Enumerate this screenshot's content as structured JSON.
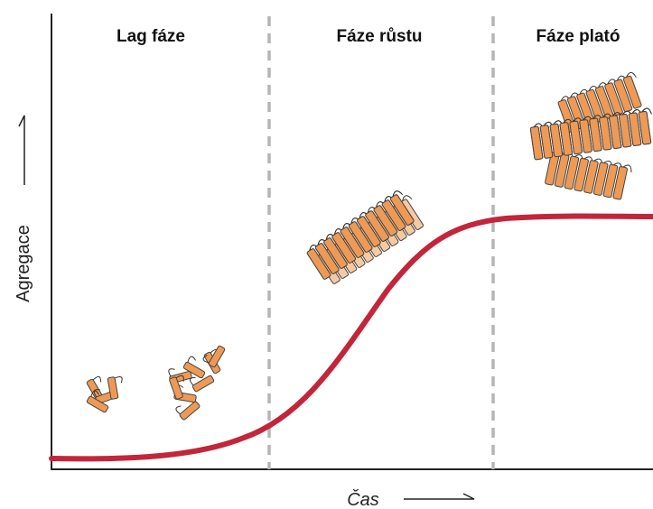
{
  "diagram": {
    "phases": [
      {
        "label": "Lag fáze"
      },
      {
        "label": "Fáze růstu"
      },
      {
        "label": "Fáze plató"
      }
    ],
    "y_axis_label": "Agregace",
    "x_axis_label": "Čas"
  }
}
